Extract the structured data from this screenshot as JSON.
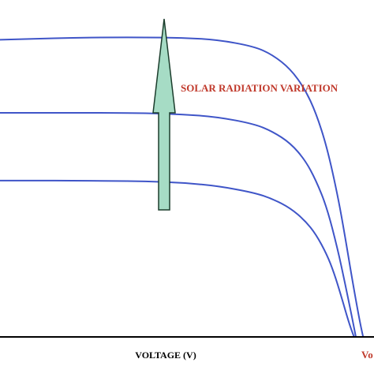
{
  "chart_data": {
    "type": "line",
    "xlabel": "VOLTAGE (V)",
    "ylabel": "",
    "annotations": {
      "arrow_label": "SOLAR RADIATION VARIATION",
      "voc_label": "Vo"
    },
    "xlim": [
      0,
      1.03
    ],
    "ylim": [
      0,
      1
    ],
    "series": [
      {
        "x": [
          0,
          0.1,
          0.2,
          0.3,
          0.4,
          0.5,
          0.6,
          0.7,
          0.75,
          0.8,
          0.84,
          0.87,
          0.9,
          0.93,
          0.95,
          0.97,
          0.99,
          1.0
        ],
        "values": [
          0.882,
          0.885,
          0.888,
          0.889,
          0.889,
          0.888,
          0.882,
          0.862,
          0.838,
          0.795,
          0.735,
          0.665,
          0.565,
          0.42,
          0.3,
          0.17,
          0.05,
          0.0
        ]
      },
      {
        "x": [
          0,
          0.1,
          0.2,
          0.3,
          0.4,
          0.5,
          0.6,
          0.7,
          0.75,
          0.8,
          0.84,
          0.87,
          0.9,
          0.93,
          0.95,
          0.97,
          0.98
        ],
        "values": [
          0.665,
          0.665,
          0.665,
          0.665,
          0.664,
          0.661,
          0.653,
          0.632,
          0.61,
          0.575,
          0.525,
          0.465,
          0.385,
          0.26,
          0.16,
          0.055,
          0.0
        ]
      },
      {
        "x": [
          0,
          0.1,
          0.2,
          0.3,
          0.4,
          0.5,
          0.6,
          0.7,
          0.75,
          0.8,
          0.84,
          0.87,
          0.9,
          0.92,
          0.94,
          0.96,
          0.975
        ],
        "values": [
          0.464,
          0.464,
          0.464,
          0.463,
          0.462,
          0.458,
          0.448,
          0.428,
          0.41,
          0.382,
          0.345,
          0.305,
          0.245,
          0.19,
          0.12,
          0.045,
          0.0
        ]
      }
    ],
    "colors": {
      "curve": "#3f55c8",
      "arrow_fill": "#a6dcc5",
      "arrow_stroke": "#1b3d2c",
      "label": "#c0392b",
      "axis": "#000000"
    }
  }
}
